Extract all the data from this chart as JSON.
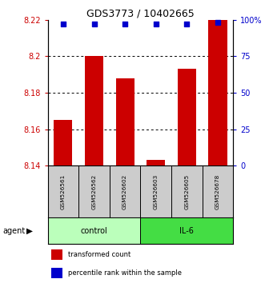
{
  "title": "GDS3773 / 10402665",
  "samples": [
    "GSM526561",
    "GSM526562",
    "GSM526602",
    "GSM526603",
    "GSM526605",
    "GSM526678"
  ],
  "bar_values": [
    8.165,
    8.2,
    8.188,
    8.143,
    8.193,
    8.22
  ],
  "percentile_values": [
    97,
    97,
    97,
    97,
    97,
    98
  ],
  "ylim_left": [
    8.14,
    8.22
  ],
  "ylim_right": [
    0,
    100
  ],
  "yticks_left": [
    8.14,
    8.16,
    8.18,
    8.2,
    8.22
  ],
  "ytick_labels_left": [
    "8.14",
    "8.16",
    "8.18",
    "8.2",
    "8.22"
  ],
  "yticks_right": [
    0,
    25,
    50,
    75,
    100
  ],
  "ytick_labels_right": [
    "0",
    "25",
    "50",
    "75",
    "100%"
  ],
  "bar_color": "#cc0000",
  "dot_color": "#0000cc",
  "bar_width": 0.6,
  "group_colors": [
    "#bbffbb",
    "#44dd44"
  ],
  "group_labels": [
    "control",
    "IL-6"
  ],
  "group_ranges": [
    [
      0,
      2
    ],
    [
      3,
      5
    ]
  ],
  "agent_label": "agent",
  "legend_bar_label": "transformed count",
  "legend_dot_label": "percentile rank within the sample",
  "tick_label_color_left": "#cc0000",
  "tick_label_color_right": "#0000cc",
  "gridline_ticks": [
    8.16,
    8.18,
    8.2
  ],
  "sample_bg": "#cccccc"
}
